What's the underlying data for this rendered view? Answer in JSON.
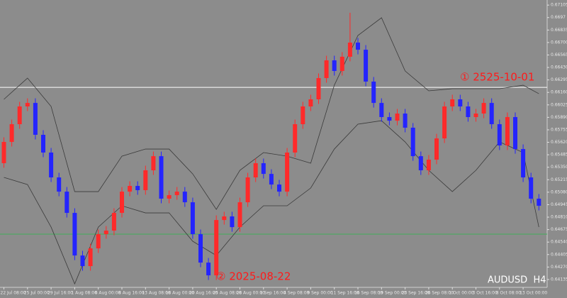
{
  "chart_data": {
    "type": "candlestick",
    "symbol": "AUDUSD  H4",
    "annotations": [
      "① 2525-10-01",
      "② 2025-08-22"
    ],
    "categories": [
      "22 Jul 08:00",
      null,
      null,
      "25 Jul 00:00",
      null,
      null,
      "29 Jul 16:00",
      null,
      null,
      "1 Aug 08:00",
      null,
      null,
      "6 Aug 00:00",
      null,
      null,
      "8 Aug 16:00",
      null,
      null,
      "13 Aug 08:00",
      null,
      null,
      "18 Aug 00:00",
      null,
      null,
      "20 Aug 16:00",
      null,
      null,
      "25 Aug 08:00",
      null,
      null,
      "28 Aug 00:00",
      null,
      null,
      "1 Sep 16:00",
      null,
      null,
      "4 Sep 08:00",
      null,
      null,
      "9 Sep 00:00",
      null,
      null,
      "11 Sep 16:00",
      null,
      null,
      "16 Sep 08:00",
      null,
      null,
      "19 Sep 00:00",
      null,
      null,
      "23 Sep 16:00",
      null,
      null,
      "26 Sep 08:00",
      null,
      null,
      "1 Oct 00:00",
      null,
      null,
      "3 Oct 16:00",
      null,
      null,
      "8 Oct 08:00",
      null,
      null,
      "13 Oct 00:00",
      null,
      null
    ],
    "open": [
      0.65394,
      0.65624,
      0.65816,
      0.66008,
      0.66046,
      0.65701,
      0.65509,
      0.6524,
      0.65086,
      0.64856,
      0.64395,
      0.6428,
      0.64472,
      0.64626,
      0.64664,
      0.64856,
      0.65086,
      0.65148,
      0.65102,
      0.65317,
      0.6547,
      0.6501,
      0.65048,
      0.65086,
      0.64971,
      0.64626,
      0.64318,
      0.6418,
      0.64779,
      0.64818,
      0.64702,
      0.64971,
      0.6524,
      0.65394,
      0.65278,
      0.65163,
      0.65086,
      0.65509,
      0.65816,
      0.66008,
      0.66085,
      0.66315,
      0.66507,
      0.66392,
      0.66546,
      0.66699,
      0.66622,
      0.66277,
      0.66046,
      0.65893,
      0.65854,
      0.65931,
      0.65778,
      0.6547,
      0.65317,
      0.65432,
      0.65662,
      0.66008,
      0.66085,
      0.66008,
      0.65893,
      0.65931,
      0.66046,
      0.65816,
      0.65586,
      0.65893,
      0.65547,
      0.6524,
      0.6501
    ],
    "high": [
      0.65674,
      0.65866,
      0.66058,
      0.66096,
      0.66096,
      0.65751,
      0.65559,
      0.6529,
      0.65136,
      0.64906,
      0.64445,
      0.64522,
      0.64676,
      0.64714,
      0.64906,
      0.65136,
      0.65198,
      0.65198,
      0.65367,
      0.6552,
      0.6552,
      0.65098,
      0.65136,
      0.65136,
      0.65021,
      0.64676,
      0.64368,
      0.64829,
      0.64868,
      0.64868,
      0.65021,
      0.6529,
      0.65444,
      0.65444,
      0.65328,
      0.65213,
      0.65559,
      0.65866,
      0.66058,
      0.66135,
      0.66365,
      0.66557,
      0.66557,
      0.66596,
      0.67022,
      0.66749,
      0.66672,
      0.66327,
      0.66096,
      0.65943,
      0.65981,
      0.65981,
      0.65828,
      0.6552,
      0.65482,
      0.65712,
      0.66058,
      0.66135,
      0.66135,
      0.66058,
      0.65981,
      0.66096,
      0.66096,
      0.65866,
      0.65943,
      0.65943,
      0.65597,
      0.6529,
      0.6506
    ],
    "low": [
      0.65344,
      0.65574,
      0.65766,
      0.65958,
      0.65651,
      0.65459,
      0.6519,
      0.65036,
      0.64806,
      0.64345,
      0.6423,
      0.6423,
      0.64422,
      0.64576,
      0.64614,
      0.64806,
      0.65036,
      0.65052,
      0.65052,
      0.65267,
      0.6496,
      0.6496,
      0.64998,
      0.64921,
      0.64576,
      0.64268,
      0.6413,
      0.6413,
      0.64729,
      0.64652,
      0.64652,
      0.64921,
      0.6519,
      0.65228,
      0.65113,
      0.65036,
      0.65036,
      0.65459,
      0.65766,
      0.65958,
      0.66035,
      0.66265,
      0.66342,
      0.66342,
      0.66496,
      0.66572,
      0.66227,
      0.65996,
      0.65843,
      0.65804,
      0.65804,
      0.65728,
      0.6542,
      0.65267,
      0.65267,
      0.65382,
      0.65612,
      0.65958,
      0.65958,
      0.65843,
      0.65843,
      0.65881,
      0.65766,
      0.65536,
      0.65536,
      0.65497,
      0.6519,
      0.6496,
      0.64883
    ],
    "close": [
      0.65624,
      0.65816,
      0.66008,
      0.66046,
      0.65701,
      0.65509,
      0.6524,
      0.65086,
      0.64856,
      0.64395,
      0.6428,
      0.64472,
      0.64626,
      0.64664,
      0.64856,
      0.65086,
      0.65148,
      0.65102,
      0.65317,
      0.6547,
      0.6501,
      0.65048,
      0.65086,
      0.64971,
      0.64626,
      0.64318,
      0.6418,
      0.64779,
      0.64818,
      0.64702,
      0.64971,
      0.6524,
      0.65394,
      0.65278,
      0.65163,
      0.65086,
      0.65509,
      0.65816,
      0.66008,
      0.66085,
      0.66315,
      0.66507,
      0.66392,
      0.66546,
      0.66699,
      0.66622,
      0.66277,
      0.66046,
      0.65893,
      0.65854,
      0.65931,
      0.65778,
      0.6547,
      0.65317,
      0.65432,
      0.65662,
      0.66008,
      0.66085,
      0.66008,
      0.65893,
      0.65931,
      0.66046,
      0.65816,
      0.65586,
      0.65893,
      0.65547,
      0.6524,
      0.6501,
      0.64933
    ],
    "up_color": "#ff2a2a",
    "down_color": "#2424ff",
    "series": [
      {
        "color": "#3a3a3a",
        "x": [
          0,
          3,
          6,
          9,
          12,
          15,
          18,
          21,
          24,
          27,
          30,
          33,
          36,
          39,
          42,
          45,
          48,
          51,
          54,
          57,
          60,
          63,
          66,
          68
        ],
        "values": [
          0.66085,
          0.66315,
          0.66008,
          0.65086,
          0.65086,
          0.6547,
          0.65547,
          0.65547,
          0.65278,
          0.64894,
          0.65317,
          0.65509,
          0.6547,
          0.65394,
          0.66238,
          0.66776,
          0.66968,
          0.66392,
          0.66177,
          0.662,
          0.662,
          0.662,
          0.66238,
          0.66146
        ]
      },
      {
        "color": "#3a3a3a",
        "x": [
          0,
          3,
          6,
          9,
          12,
          15,
          18,
          21,
          24,
          27,
          30,
          33,
          36,
          39,
          42,
          45,
          48,
          51,
          54,
          57,
          60,
          63,
          66,
          68
        ],
        "values": [
          0.6524,
          0.65163,
          0.64702,
          0.64088,
          0.64702,
          0.64933,
          0.64856,
          0.64856,
          0.64549,
          0.64395,
          0.64702,
          0.64933,
          0.64933,
          0.65125,
          0.65547,
          0.65816,
          0.65854,
          0.65624,
          0.65317,
          0.65086,
          0.65317,
          0.65624,
          0.65509,
          0.64702
        ]
      }
    ],
    "hlines": [
      {
        "value": 0.66215,
        "color": "#ffffff"
      },
      {
        "value": 0.64626,
        "color": "#3fae5a"
      }
    ],
    "ylim": [
      0.6405,
      0.6716
    ],
    "yticks": [
      0.67105,
      0.6697,
      0.66835,
      {
        "value": 0.667,
        "label": "0.66700"
      },
      0.66565,
      {
        "value": 0.6643,
        "label": "0.66430"
      },
      0.66295,
      {
        "value": 0.6616,
        "label": "0.66160"
      },
      0.66025,
      {
        "value": 0.6589,
        "label": "0.65890"
      },
      0.65755,
      {
        "value": 0.6562,
        "label": "0.65620"
      },
      0.65485,
      {
        "value": 0.6535,
        "label": "0.65350"
      },
      0.65215,
      {
        "value": 0.6508,
        "label": "0.65080"
      },
      0.64945,
      {
        "value": 0.6481,
        "label": "0.64810"
      },
      0.64675,
      {
        "value": 0.6454,
        "label": "0.64540"
      },
      0.64405,
      {
        "value": 0.6427,
        "label": "0.64270"
      },
      0.64135
    ]
  }
}
